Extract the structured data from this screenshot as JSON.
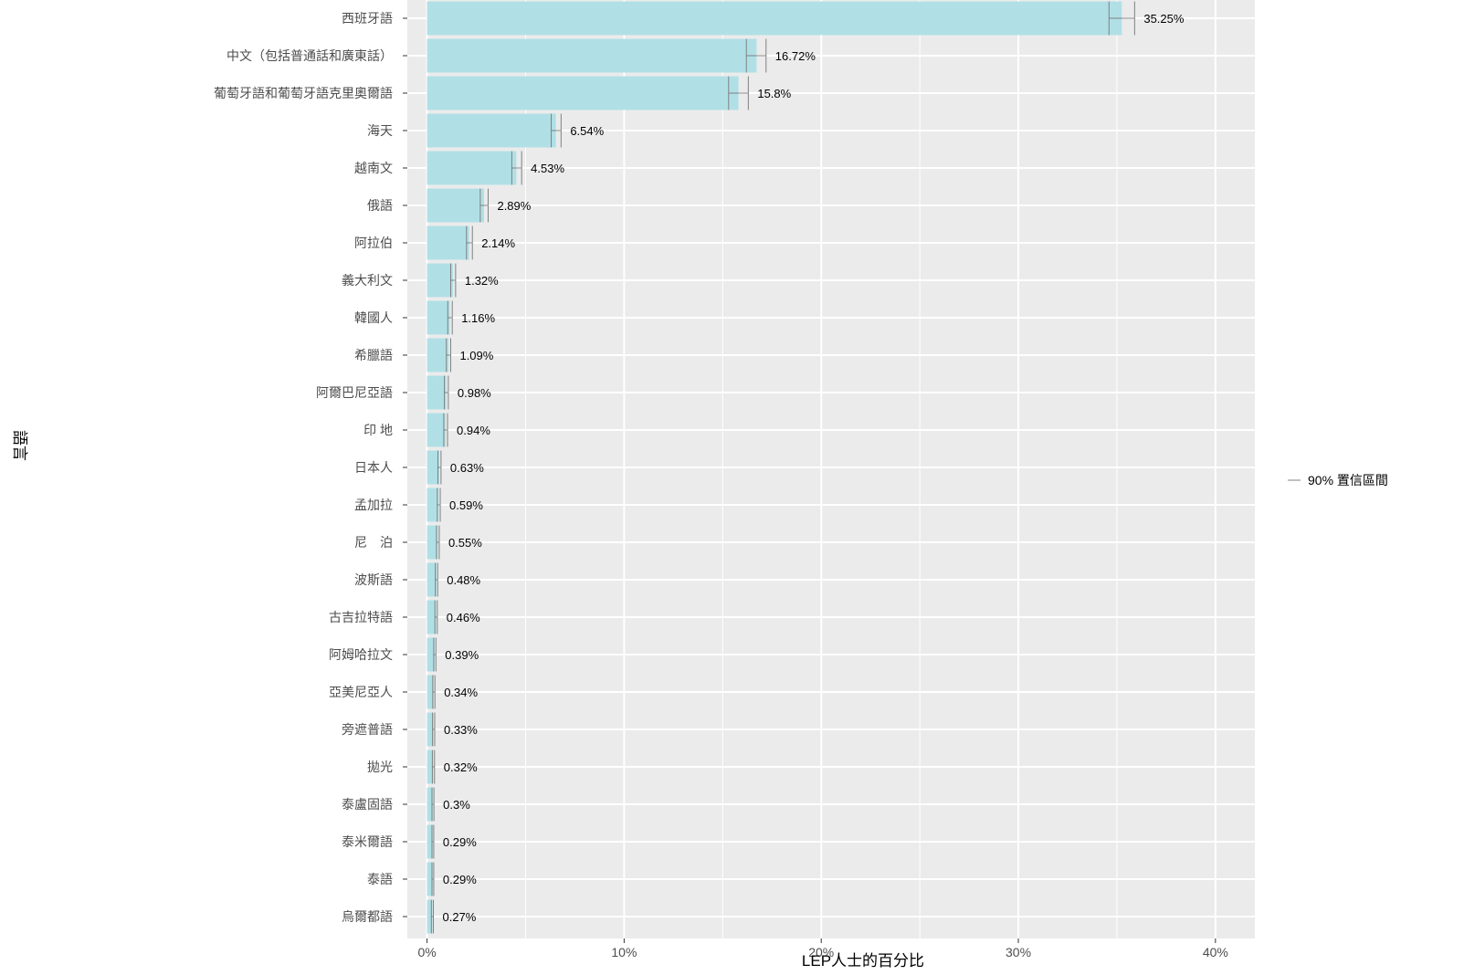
{
  "chart_data": {
    "type": "bar",
    "orientation": "horizontal",
    "xlabel": "LEP人士的百分比",
    "ylabel": "語言",
    "xlim": [
      -1,
      42
    ],
    "x_ticks": [
      0,
      10,
      20,
      30,
      40
    ],
    "x_tick_labels": [
      "0%",
      "10%",
      "20%",
      "30%",
      "40%"
    ],
    "grid": true,
    "legend": {
      "position": "right",
      "entries": [
        "90% 置信區間"
      ]
    },
    "bar_color": "#b0e0e6",
    "panel_color": "#ebebeb",
    "error_color": "#808080",
    "categories": [
      "西班牙語",
      "中文（包括普通話和廣東話）",
      "葡萄牙語和葡萄牙語克里奧爾語",
      "海天",
      "越南文",
      "俄語",
      "阿拉伯",
      "義大利文",
      "韓國人",
      "希臘語",
      "阿爾巴尼亞語",
      "印 地",
      "日本人",
      "孟加拉",
      "尼　泊",
      "波斯語",
      "古吉拉特語",
      "阿姆哈拉文",
      "亞美尼亞人",
      "旁遮普語",
      "拋光",
      "泰盧固語",
      "泰米爾語",
      "泰語",
      "烏爾都語"
    ],
    "values": [
      35.25,
      16.72,
      15.8,
      6.54,
      4.53,
      2.89,
      2.14,
      1.32,
      1.16,
      1.09,
      0.98,
      0.94,
      0.63,
      0.59,
      0.55,
      0.48,
      0.46,
      0.39,
      0.34,
      0.33,
      0.32,
      0.3,
      0.29,
      0.29,
      0.27
    ],
    "value_labels": [
      "35.25%",
      "16.72%",
      "15.8%",
      "6.54%",
      "4.53%",
      "2.89%",
      "2.14%",
      "1.32%",
      "1.16%",
      "1.09%",
      "0.98%",
      "0.94%",
      "0.63%",
      "0.59%",
      "0.55%",
      "0.48%",
      "0.46%",
      "0.39%",
      "0.34%",
      "0.33%",
      "0.32%",
      "0.3%",
      "0.29%",
      "0.29%",
      "0.27%"
    ],
    "ci_low": [
      34.6,
      16.2,
      15.3,
      6.3,
      4.3,
      2.7,
      2.0,
      1.2,
      1.05,
      0.98,
      0.88,
      0.85,
      0.55,
      0.52,
      0.48,
      0.42,
      0.4,
      0.34,
      0.29,
      0.28,
      0.27,
      0.25,
      0.25,
      0.25,
      0.22
    ],
    "ci_high": [
      35.9,
      17.2,
      16.3,
      6.8,
      4.8,
      3.1,
      2.3,
      1.45,
      1.28,
      1.2,
      1.08,
      1.04,
      0.71,
      0.67,
      0.62,
      0.54,
      0.52,
      0.45,
      0.4,
      0.39,
      0.38,
      0.35,
      0.34,
      0.34,
      0.32
    ]
  }
}
